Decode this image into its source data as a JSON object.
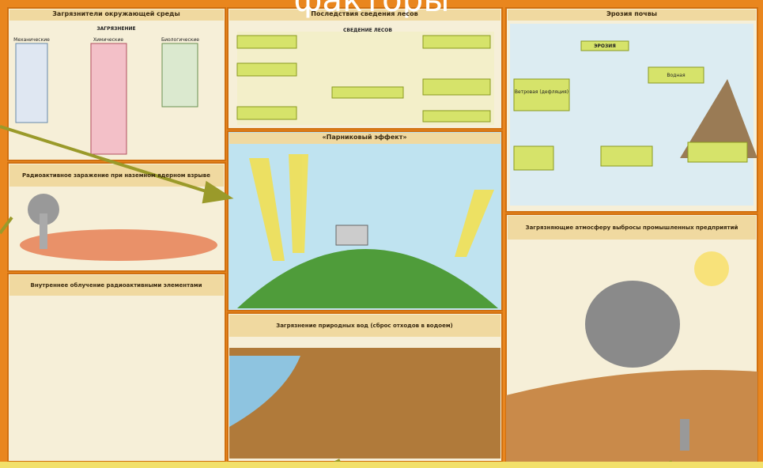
{
  "header": {
    "title": "факторы"
  },
  "panels": [
    {
      "title": "Загрязнители окружающей среды",
      "labels": [
        "ЗАГРЯЗНЕНИЕ",
        "Механические",
        "Химические",
        "Биологические"
      ]
    },
    {
      "title": "Последствия сведения лесов",
      "labels": [
        "СВЕДЕНИЕ ЛЕСОВ"
      ]
    },
    {
      "title": "Эрозия почвы",
      "labels": [
        "ЭРОЗИЯ",
        "Ветровая (дефляция)",
        "Водная"
      ]
    },
    {
      "title": "«Парниковый эффект»",
      "labels": []
    },
    {
      "title": "Радиоактивное заражение при наземном ядерном взрыве",
      "labels": []
    },
    {
      "title": "Внутреннее облучение радиоактивными элементами",
      "labels": []
    },
    {
      "title": "Загрязнение природных вод (сброс отходов в водоем)",
      "labels": []
    },
    {
      "title": "Загрязняющие атмосферу выбросы промышленных предприятий",
      "labels": []
    }
  ]
}
